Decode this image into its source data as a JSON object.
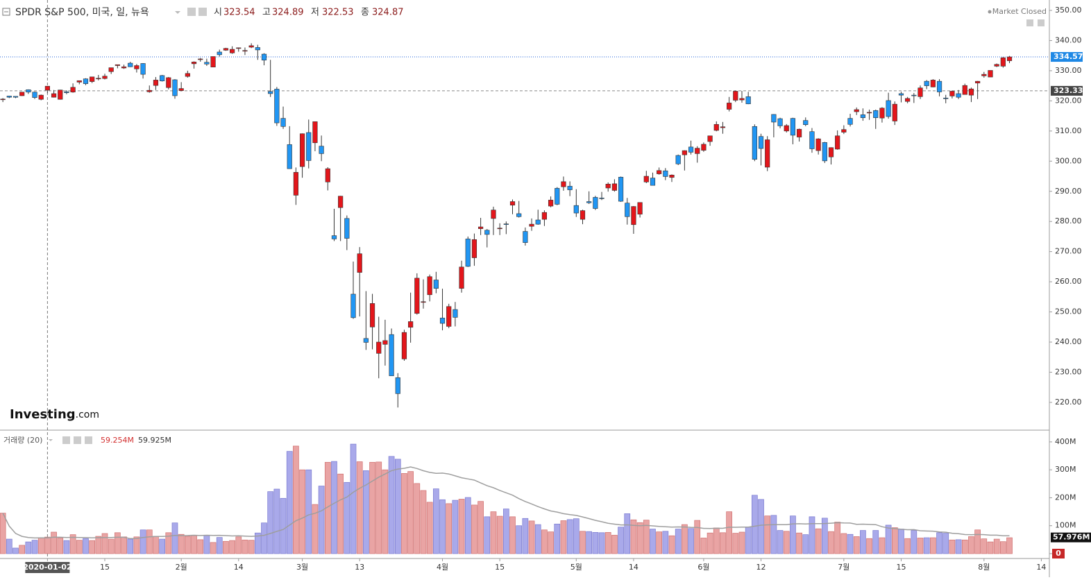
{
  "chart_data": {
    "type": "candlestick",
    "title": "SPDR S&P 500, 미국, 일, 뉴욕",
    "status": "Market Closed",
    "logo": {
      "name": "Investing",
      "suffix": ".com"
    },
    "readout": {
      "open_label": "시",
      "high_label": "고",
      "low_label": "저",
      "close_label": "종"
    },
    "volume_label": "거래량 (20)",
    "ma_period": 20,
    "volume_readout": {
      "value": 59.254,
      "label": "59.254M"
    },
    "ma_readout": {
      "value": 59.925,
      "label": "59.925M"
    },
    "volume_tag": {
      "value": 57.976,
      "label": "57.976M"
    },
    "crosshair": {
      "x": 7,
      "price": 323.33
    },
    "up_color": "#e3161b",
    "down_color": "#2196f3",
    "volume_up_color": "#e9a4a4",
    "volume_down_color": "#a9a9ea",
    "ma_color": "#9e9e9e",
    "xlim": [
      -0.45,
      164.26
    ],
    "xticks": [
      {
        "value": 7,
        "label": "2020-01-02"
      },
      {
        "value": 16,
        "label": "15"
      },
      {
        "value": 28,
        "label": "2월"
      },
      {
        "value": 37,
        "label": "14"
      },
      {
        "value": 47,
        "label": "3월"
      },
      {
        "value": 56,
        "label": "13"
      },
      {
        "value": 69,
        "label": "4월"
      },
      {
        "value": 78,
        "label": "15"
      },
      {
        "value": 90,
        "label": "5월"
      },
      {
        "value": 99,
        "label": "14"
      },
      {
        "value": 110,
        "label": "6월"
      },
      {
        "value": 119,
        "label": "12"
      },
      {
        "value": 132,
        "label": "7월"
      },
      {
        "value": 141,
        "label": "15"
      },
      {
        "value": 154,
        "label": "8월"
      },
      {
        "value": 163,
        "label": "14"
      }
    ],
    "ylim": [
      211.25,
      353.45
    ],
    "yticks": [
      {
        "value": 350,
        "label": "350.00"
      },
      {
        "value": 340,
        "label": "340.00"
      },
      {
        "value": 330,
        "label": "330.00"
      },
      {
        "value": 320,
        "label": "320.00"
      },
      {
        "value": 310,
        "label": "310.00"
      },
      {
        "value": 300,
        "label": "300.00"
      },
      {
        "value": 290,
        "label": "290.00"
      },
      {
        "value": 280,
        "label": "280.00"
      },
      {
        "value": 270,
        "label": "270.00"
      },
      {
        "value": 260,
        "label": "260.00"
      },
      {
        "value": 250,
        "label": "250.00"
      },
      {
        "value": 240,
        "label": "240.00"
      },
      {
        "value": 230,
        "label": "230.00"
      },
      {
        "value": 220,
        "label": "220.00"
      }
    ],
    "y2lim": [
      0,
      437
    ],
    "y2ticks": [
      {
        "value": 400,
        "label": "400M"
      },
      {
        "value": 300,
        "label": "300M"
      },
      {
        "value": 200,
        "label": "200M"
      },
      {
        "value": 100,
        "label": "100M"
      },
      0
    ],
    "open": [
      320.5,
      321.6,
      321.5,
      321.7,
      323.7,
      322.9,
      320.5,
      323.54,
      321.2,
      320.5,
      323.0,
      322.9,
      326.2,
      327.3,
      326.4,
      327.5,
      327.4,
      329.7,
      331.7,
      330.9,
      332.5,
      330.6,
      332.4,
      323.0,
      325.1,
      328.4,
      324.4,
      327.0,
      323.4,
      328.1,
      332.3,
      333.9,
      332.8,
      331.2,
      336.2,
      336.8,
      335.9,
      337.5,
      336.5,
      337.8,
      337.7,
      335.5,
      323.1,
      323.9,
      314.2,
      305.5,
      288.7,
      298.2,
      309.5,
      306.1,
      304.98,
      293.1,
      275.3,
      284.6,
      281.0,
      255.9,
      263.1,
      241.2,
      245.0,
      236.25,
      239.25,
      242.5,
      228.2,
      234.4,
      244.9,
      249.5,
      253.3,
      255.7,
      260.6,
      247.98,
      245.2,
      250.8,
      257.8,
      274.2,
      267.96,
      277.6,
      277.1,
      280.98,
      277.6,
      279.2,
      285.4,
      282.6,
      276.7,
      278.4,
      280.5,
      280.7,
      285.1,
      291.0,
      291.5,
      291.7,
      285.3,
      280.7,
      286.6,
      288.0,
      287.8,
      291.1,
      290.3,
      294.7,
      286.1,
      278.95,
      282.4,
      293.1,
      294.4,
      295.8,
      296.8,
      294.6,
      301.9,
      302.1,
      304.7,
      302.5,
      303.6,
      306.5,
      310.2,
      311.1,
      317.2,
      320.2,
      320.3,
      321.4,
      311.5,
      308.2,
      298.0,
      315.5,
      314.1,
      310.0,
      314.2,
      307.99,
      313.5,
      309.8,
      303.5,
      306.2,
      301.4,
      303.99,
      309.6,
      314.2,
      316.4,
      315.4,
      316.2,
      316.8,
      314.3,
      320.1,
      313.3,
      322.4,
      319.8,
      321.9,
      321.4,
      326.5,
      324.6,
      326.5,
      320.95,
      321.6,
      322.4,
      322.1,
      321.9,
      325.9,
      328.3,
      327.9,
      331.5,
      331.5,
      333.3
    ],
    "high": [
      320.9,
      321.7,
      321.5,
      322.9,
      323.8,
      323.1,
      322.1,
      324.89,
      323.6,
      323.7,
      323.5,
      325.8,
      326.7,
      327.5,
      327.96,
      328.6,
      329.0,
      331.0,
      332.0,
      332.0,
      332.95,
      332.2,
      332.5,
      325.1,
      327.9,
      328.6,
      327.9,
      327.2,
      326.2,
      330.0,
      333.1,
      334.2,
      333.99,
      334.7,
      337.0,
      337.6,
      338.1,
      337.7,
      337.7,
      339.1,
      338.6,
      335.8,
      333.6,
      324.6,
      318.1,
      311.6,
      297.9,
      309.2,
      313.8,
      313.1,
      308.5,
      298.0,
      284.2,
      288.5,
      282.0,
      266.7,
      271.5,
      256.9,
      256.0,
      248.4,
      247.4,
      244.5,
      229.7,
      244.1,
      256.4,
      262.8,
      260.8,
      262.4,
      263.3,
      257.7,
      252.7,
      253.3,
      267.0,
      275.0,
      276.0,
      281.2,
      277.5,
      284.9,
      279.4,
      280.0,
      287.3,
      286.8,
      278.0,
      281.0,
      283.9,
      283.7,
      288.3,
      291.4,
      294.9,
      293.3,
      290.7,
      283.9,
      290.0,
      288.5,
      289.8,
      292.95,
      294.0,
      294.9,
      287.8,
      285.1,
      286.3,
      296.8,
      296.2,
      297.9,
      297.7,
      295.6,
      302.2,
      303.6,
      306.8,
      304.96,
      306.2,
      308.1,
      313.2,
      313.0,
      321.3,
      323.4,
      323.3,
      323.0,
      312.2,
      309.1,
      308.3,
      315.6,
      314.4,
      312.3,
      314.4,
      310.8,
      314.5,
      311.0,
      307.6,
      306.4,
      304.6,
      310.2,
      311.9,
      315.7,
      317.8,
      317.5,
      317.1,
      317.1,
      317.9,
      322.7,
      319.8,
      323.0,
      321.3,
      322.6,
      325.1,
      326.9,
      327.2,
      327.2,
      321.99,
      323.4,
      323.6,
      325.7,
      324.4,
      326.6,
      329.6,
      330.1,
      332.4,
      334.5,
      334.9
    ],
    "low": [
      319.6,
      320.9,
      320.9,
      321.6,
      322.3,
      320.6,
      320.2,
      322.53,
      321.1,
      320.4,
      322.2,
      322.7,
      325.5,
      325.2,
      325.9,
      326.8,
      327.1,
      328.9,
      330.8,
      330.6,
      331.2,
      329.4,
      327.4,
      322.7,
      323.6,
      326.4,
      323.8,
      320.7,
      323.2,
      327.7,
      330.7,
      332.99,
      331.6,
      331.2,
      334.7,
      336.6,
      335.6,
      336.3,
      335.2,
      337.5,
      333.6,
      331.8,
      321.3,
      311.7,
      310.7,
      297.5,
      285.5,
      294.5,
      297.6,
      303.3,
      300.0,
      290.3,
      273.5,
      273.5,
      270.5,
      247.7,
      248.5,
      237.4,
      237.6,
      228.0,
      232.2,
      228.8,
      218.3,
      233.8,
      239.8,
      249.1,
      251.1,
      253.5,
      256.2,
      243.9,
      244.6,
      245.2,
      256.4,
      264.9,
      265.3,
      275.5,
      271.4,
      275.5,
      275.5,
      275.8,
      282.4,
      281.3,
      272.0,
      276.9,
      278.9,
      278.5,
      284.7,
      285.4,
      290.2,
      288.4,
      281.5,
      279.1,
      285.8,
      283.8,
      287.1,
      289.9,
      289.9,
      286.5,
      278.96,
      275.9,
      281.3,
      292.7,
      291.96,
      295.5,
      293.7,
      293.1,
      298.7,
      296.9,
      302.2,
      299.5,
      303.1,
      305.1,
      309.9,
      309.1,
      316.5,
      319.6,
      319.4,
      318.9,
      300.0,
      298.6,
      296.7,
      307.9,
      310.9,
      309.5,
      305.6,
      306.5,
      311.6,
      302.8,
      302.2,
      299.4,
      298.9,
      303.8,
      309.0,
      311.5,
      315.3,
      313.4,
      313.7,
      310.7,
      312.8,
      314.1,
      312.0,
      319.5,
      319.2,
      319.3,
      320.6,
      323.9,
      324.5,
      321.5,
      319.2,
      320.8,
      320.6,
      322.1,
      319.6,
      320.6,
      327.7,
      327.9,
      331.2,
      331.0,
      332.5
    ],
    "close": [
      320.6,
      321.2,
      321.2,
      322.9,
      322.9,
      321.1,
      321.9,
      324.87,
      322.4,
      323.6,
      322.7,
      324.5,
      326.7,
      325.7,
      327.95,
      327.5,
      328.2,
      331.0,
      332.0,
      331.3,
      331.3,
      331.7,
      328.8,
      323.5,
      326.9,
      326.6,
      327.7,
      321.7,
      324.1,
      329.1,
      332.9,
      333.9,
      332.2,
      334.7,
      335.3,
      337.4,
      337.1,
      337.6,
      336.7,
      338.3,
      336.9,
      333.5,
      322.4,
      312.7,
      311.5,
      297.5,
      296.3,
      309.1,
      300.2,
      313.1,
      302.5,
      297.5,
      274.2,
      288.4,
      274.4,
      248.1,
      269.3,
      239.9,
      252.8,
      240.0,
      240.5,
      228.8,
      222.9,
      243.2,
      246.8,
      261.2,
      253.4,
      261.7,
      257.8,
      246.2,
      251.8,
      248.2,
      264.9,
      265.1,
      274.0,
      278.2,
      275.7,
      283.8,
      277.8,
      279.1,
      286.6,
      281.6,
      273.0,
      279.1,
      279.1,
      283.0,
      287.1,
      285.7,
      293.2,
      290.5,
      282.8,
      283.6,
      286.2,
      284.3,
      287.7,
      292.4,
      292.5,
      286.7,
      281.6,
      284.97,
      286.3,
      295.0,
      291.97,
      296.9,
      294.9,
      295.4,
      299.1,
      303.5,
      302.97,
      304.3,
      305.6,
      308.4,
      312.2,
      311.4,
      319.3,
      323.2,
      320.8,
      319.0,
      300.6,
      304.2,
      307.1,
      312.96,
      311.7,
      311.8,
      308.6,
      310.6,
      312.1,
      304.1,
      307.4,
      300.1,
      304.5,
      308.4,
      310.5,
      312.2,
      317.1,
      314.4,
      316.2,
      314.4,
      317.6,
      314.8,
      318.9,
      321.9,
      320.8,
      321.7,
      324.3,
      325.0,
      326.9,
      322.96,
      320.9,
      323.2,
      321.2,
      325.1,
      323.96,
      326.5,
      328.8,
      330.1,
      332.1,
      334.3,
      334.57
    ],
    "volume": [
      145,
      52,
      20,
      30,
      42,
      48,
      57,
      59.254,
      77,
      56,
      47,
      68,
      48,
      54,
      47,
      62,
      72,
      52,
      75,
      60,
      52,
      60,
      85,
      85,
      62,
      52,
      75,
      110,
      69,
      62,
      65,
      50,
      65,
      40,
      58,
      44,
      47,
      60,
      49,
      48,
      74,
      110,
      222,
      231,
      198,
      366,
      385,
      300,
      300,
      176,
      242,
      327,
      330,
      285,
      255,
      392,
      329,
      297,
      327,
      328,
      300,
      348,
      338,
      287,
      294,
      251,
      226,
      184,
      232,
      193,
      179,
      191,
      195,
      201,
      174,
      187,
      132,
      150,
      134,
      160,
      132,
      100,
      126,
      117,
      104,
      85,
      78,
      106,
      118,
      122,
      125,
      80,
      79,
      76,
      75,
      76,
      66,
      95,
      143,
      121,
      111,
      120,
      88,
      78,
      80,
      64,
      88,
      104,
      90,
      119,
      56,
      74,
      92,
      75,
      150,
      73,
      77,
      95,
      209,
      194,
      135,
      137,
      83,
      80,
      135,
      74,
      68,
      132,
      89,
      127,
      79,
      113,
      72,
      69,
      61,
      83,
      54,
      83,
      57,
      102,
      93,
      88,
      54,
      83,
      56,
      57,
      57,
      75,
      73,
      49,
      50,
      49,
      61,
      85,
      53,
      42,
      52,
      43,
      57
    ]
  }
}
